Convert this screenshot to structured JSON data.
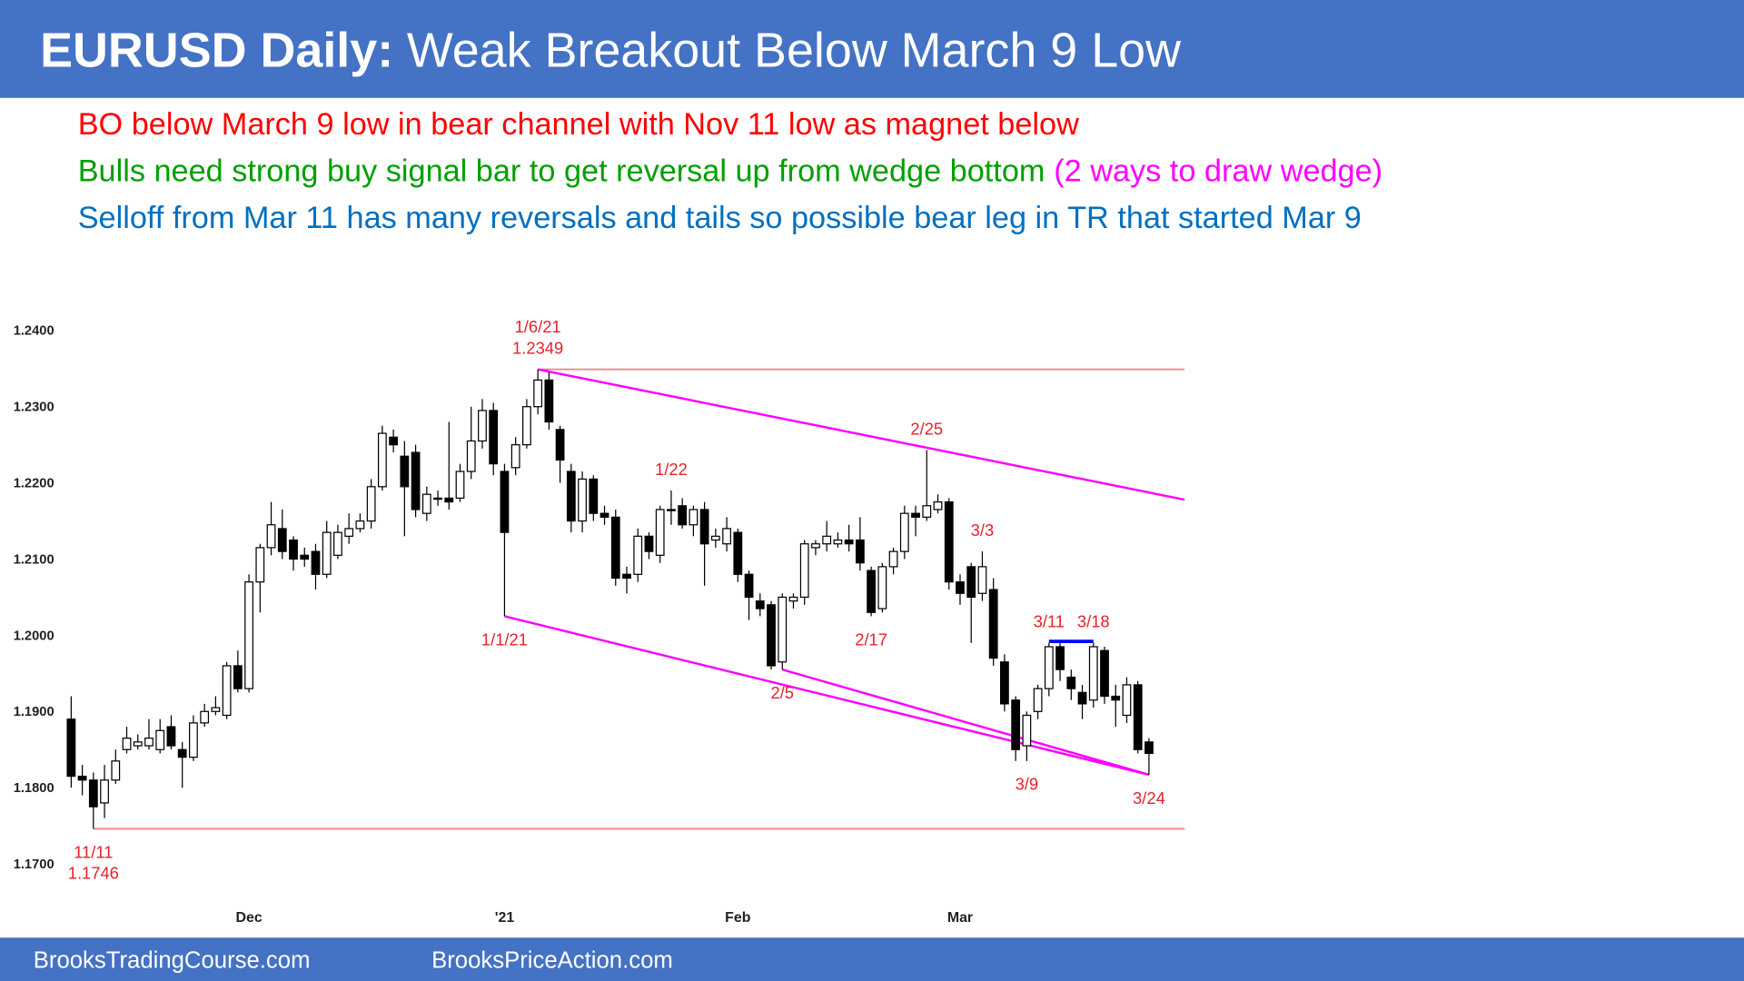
{
  "header": {
    "title_bold": "EURUSD Daily:",
    "title": "Weak Breakout Below March 9 Low"
  },
  "notes": [
    [
      {
        "text": "BO below March 9 low in bear channel with Nov 11 low as magnet below",
        "color": "#ff0000"
      }
    ],
    [
      {
        "text": "Bulls need strong buy signal bar to get reversal up from wedge bottom",
        "color": "#00a000"
      },
      {
        "text": "(2 ways to draw wedge)",
        "color": "#ff00ff"
      }
    ],
    [
      {
        "text": "Selloff from Mar 11 has many reversals and tails so possible bear leg in TR that started Mar 9",
        "color": "#0070c0"
      }
    ]
  ],
  "footer": {
    "left": "BrooksTradingCourse.com",
    "right": "BrooksPriceAction.com"
  },
  "chart_data": {
    "type": "candlestick",
    "up_color": "#ffffff",
    "down_color": "#000000",
    "edge_color": "#000000",
    "categories": [
      null,
      null,
      null,
      null,
      null,
      null,
      null,
      null,
      null,
      null,
      null,
      null,
      null,
      null,
      null,
      null,
      "Dec",
      null,
      null,
      null,
      null,
      null,
      null,
      null,
      null,
      null,
      null,
      null,
      null,
      null,
      null,
      null,
      null,
      null,
      null,
      null,
      null,
      null,
      null,
      "'21",
      null,
      null,
      null,
      null,
      null,
      null,
      null,
      null,
      null,
      null,
      null,
      null,
      null,
      null,
      null,
      null,
      null,
      null,
      null,
      null,
      "Feb",
      null,
      null,
      null,
      null,
      null,
      null,
      null,
      null,
      null,
      null,
      null,
      null,
      null,
      null,
      null,
      null,
      null,
      null,
      null,
      "Mar",
      null,
      null,
      null,
      null,
      null,
      null,
      null,
      null,
      null,
      null,
      null,
      null,
      null,
      null,
      null,
      null,
      null
    ],
    "open": [
      1.189,
      1.1815,
      1.181,
      1.178,
      1.181,
      1.185,
      1.1855,
      1.1855,
      1.185,
      1.188,
      1.185,
      1.184,
      1.1885,
      1.19,
      1.1895,
      1.196,
      1.193,
      1.207,
      1.2115,
      1.214,
      1.2125,
      1.2105,
      1.211,
      1.208,
      1.2105,
      1.213,
      1.214,
      1.215,
      1.2195,
      1.226,
      1.2235,
      1.224,
      1.216,
      1.218,
      1.218,
      1.218,
      1.2215,
      1.2255,
      1.2295,
      1.2215,
      1.222,
      1.225,
      1.23,
      1.2335,
      1.227,
      1.2215,
      1.215,
      1.2205,
      1.216,
      1.2155,
      1.208,
      1.208,
      1.213,
      1.2105,
      1.2165,
      1.217,
      1.2145,
      1.2165,
      1.2125,
      1.212,
      1.2135,
      1.208,
      1.2045,
      1.204,
      1.1965,
      1.2045,
      1.205,
      1.2115,
      1.212,
      1.212,
      1.2125,
      1.2125,
      1.2085,
      1.2035,
      1.209,
      1.211,
      1.216,
      1.2155,
      1.2165,
      1.2175,
      1.207,
      1.209,
      1.2055,
      1.206,
      1.1965,
      1.1915,
      1.1855,
      1.19,
      1.193,
      1.1985,
      1.1945,
      1.1925,
      1.1915,
      1.198,
      1.192,
      1.1895,
      1.1935,
      1.186
    ],
    "high": [
      1.192,
      1.183,
      1.182,
      1.183,
      1.185,
      1.188,
      1.187,
      1.189,
      1.189,
      1.1895,
      1.186,
      1.1895,
      1.191,
      1.192,
      1.1965,
      1.198,
      1.208,
      1.212,
      1.2175,
      1.2165,
      1.213,
      1.2115,
      1.212,
      1.215,
      1.2145,
      1.216,
      1.216,
      1.2205,
      1.2275,
      1.227,
      1.2255,
      1.225,
      1.2195,
      1.219,
      1.228,
      1.2225,
      1.23,
      1.231,
      1.2305,
      1.2225,
      1.226,
      1.231,
      1.2349,
      1.2345,
      1.2275,
      1.2225,
      1.2215,
      1.221,
      1.217,
      1.2165,
      1.209,
      1.214,
      1.2135,
      1.217,
      1.219,
      1.218,
      1.217,
      1.2175,
      1.214,
      1.2155,
      1.214,
      1.2085,
      1.2055,
      1.2045,
      1.2055,
      1.2055,
      1.2125,
      1.2125,
      1.215,
      1.2135,
      1.2145,
      1.2155,
      1.209,
      1.2095,
      1.2115,
      1.217,
      1.217,
      1.2243,
      1.2185,
      1.218,
      1.208,
      1.2095,
      1.211,
      1.2075,
      1.1975,
      1.192,
      1.19,
      1.1935,
      1.199,
      1.199,
      1.1955,
      1.1935,
      1.199,
      1.1985,
      1.1935,
      1.1945,
      1.194,
      1.1865
    ],
    "low": [
      1.18,
      1.179,
      1.1746,
      1.176,
      1.1805,
      1.1845,
      1.185,
      1.185,
      1.1845,
      1.185,
      1.18,
      1.1835,
      1.188,
      1.1895,
      1.189,
      1.1925,
      1.1925,
      1.203,
      1.2105,
      1.21,
      1.2085,
      1.209,
      1.206,
      1.2075,
      1.21,
      1.212,
      1.2135,
      1.214,
      1.219,
      1.224,
      1.213,
      1.2155,
      1.215,
      1.217,
      1.2165,
      1.2175,
      1.2205,
      1.2245,
      1.221,
      1.2025,
      1.221,
      1.2245,
      1.229,
      1.227,
      1.22,
      1.2135,
      1.2135,
      1.215,
      1.2145,
      1.2065,
      1.2055,
      1.207,
      1.21,
      1.2095,
      1.2145,
      1.214,
      1.213,
      1.2065,
      1.2115,
      1.211,
      1.207,
      1.202,
      1.2025,
      1.1955,
      1.1955,
      1.2035,
      1.204,
      1.2105,
      1.211,
      1.2115,
      1.211,
      1.2085,
      1.2025,
      1.203,
      1.208,
      1.21,
      1.213,
      1.215,
      1.216,
      1.206,
      1.204,
      1.199,
      1.2045,
      1.196,
      1.19,
      1.1835,
      1.1835,
      1.189,
      1.192,
      1.194,
      1.1915,
      1.189,
      1.1905,
      1.191,
      1.188,
      1.1885,
      1.1845,
      1.1817
    ],
    "close": [
      1.1815,
      1.181,
      1.1775,
      1.181,
      1.1835,
      1.1865,
      1.186,
      1.1865,
      1.1875,
      1.1855,
      1.184,
      1.1885,
      1.19,
      1.1905,
      1.196,
      1.193,
      1.207,
      1.2115,
      1.2145,
      1.211,
      1.21,
      1.21,
      1.208,
      1.2135,
      1.2135,
      1.214,
      1.215,
      1.2195,
      1.2265,
      1.225,
      1.2195,
      1.2165,
      1.2185,
      1.218,
      1.2175,
      1.2215,
      1.2255,
      1.2295,
      1.2225,
      1.2135,
      1.225,
      1.23,
      1.2335,
      1.228,
      1.223,
      1.215,
      1.2205,
      1.216,
      1.2155,
      1.2075,
      1.2075,
      1.213,
      1.211,
      1.2165,
      1.2165,
      1.2145,
      1.2165,
      1.212,
      1.213,
      1.214,
      1.208,
      1.205,
      1.2035,
      1.196,
      1.205,
      1.205,
      1.212,
      1.212,
      1.213,
      1.2125,
      1.212,
      1.2095,
      1.203,
      1.209,
      1.211,
      1.216,
      1.2155,
      1.217,
      1.2175,
      1.207,
      1.2055,
      1.205,
      1.209,
      1.197,
      1.191,
      1.185,
      1.1895,
      1.193,
      1.1985,
      1.1955,
      1.193,
      1.191,
      1.1985,
      1.192,
      1.1915,
      1.1935,
      1.185,
      1.1845
    ],
    "ylim": [
      1.1666,
      1.2425
    ],
    "yticks": [
      {
        "value": 1.17,
        "label": "1.1700"
      },
      {
        "value": 1.18,
        "label": "1.1800"
      },
      {
        "value": 1.19,
        "label": "1.1900"
      },
      {
        "value": 1.2,
        "label": "1.2000"
      },
      {
        "value": 1.21,
        "label": "1.2100"
      },
      {
        "value": 1.22,
        "label": "1.2200"
      },
      {
        "value": 1.23,
        "label": "1.2300"
      },
      {
        "value": 1.24,
        "label": "1.2400"
      }
    ],
    "lines": [
      {
        "x": [
          42,
          100.2
        ],
        "y": [
          1.2349,
          1.2349
        ],
        "color": "#f08080",
        "width": 1.5
      },
      {
        "x": [
          2,
          100.2
        ],
        "y": [
          1.1746,
          1.1746
        ],
        "color": "#f08080",
        "width": 1.5
      },
      {
        "x": [
          42,
          100.2
        ],
        "y": [
          1.2349,
          1.2178
        ],
        "color": "#ff00ff",
        "width": 2
      },
      {
        "x": [
          39,
          97
        ],
        "y": [
          1.2025,
          1.1817
        ],
        "color": "#ff00ff",
        "width": 2
      },
      {
        "x": [
          64,
          97
        ],
        "y": [
          1.1955,
          1.1817
        ],
        "color": "#ff00ff",
        "width": 2
      },
      {
        "x": [
          88,
          92
        ],
        "y": [
          1.1992,
          1.1992
        ],
        "color": "#0000ff",
        "width": 3
      }
    ],
    "annotations": [
      {
        "lines": [
          "1/6/21",
          "1.2349"
        ],
        "at": 42,
        "side": "above"
      },
      {
        "lines": [
          "1/22"
        ],
        "at": 54,
        "side": "above"
      },
      {
        "lines": [
          "2/25"
        ],
        "at": 77,
        "side": "above"
      },
      {
        "lines": [
          "3/3"
        ],
        "at": 82,
        "side": "above"
      },
      {
        "lines": [
          "3/11"
        ],
        "at": 88,
        "side": "above"
      },
      {
        "lines": [
          "3/18"
        ],
        "at": 92,
        "side": "above"
      },
      {
        "lines": [
          "1/1/21"
        ],
        "at": 39,
        "side": "below"
      },
      {
        "lines": [
          "2/5"
        ],
        "at": 64,
        "side": "below"
      },
      {
        "lines": [
          "2/17"
        ],
        "at": 72,
        "side": "below"
      },
      {
        "lines": [
          "3/9"
        ],
        "at": 86,
        "side": "below"
      },
      {
        "lines": [
          "3/24"
        ],
        "at": 97,
        "side": "below"
      },
      {
        "lines": [
          "11/11",
          "1.1746"
        ],
        "at": 2,
        "side": "below"
      }
    ],
    "annotation_color": "#e8202a"
  }
}
